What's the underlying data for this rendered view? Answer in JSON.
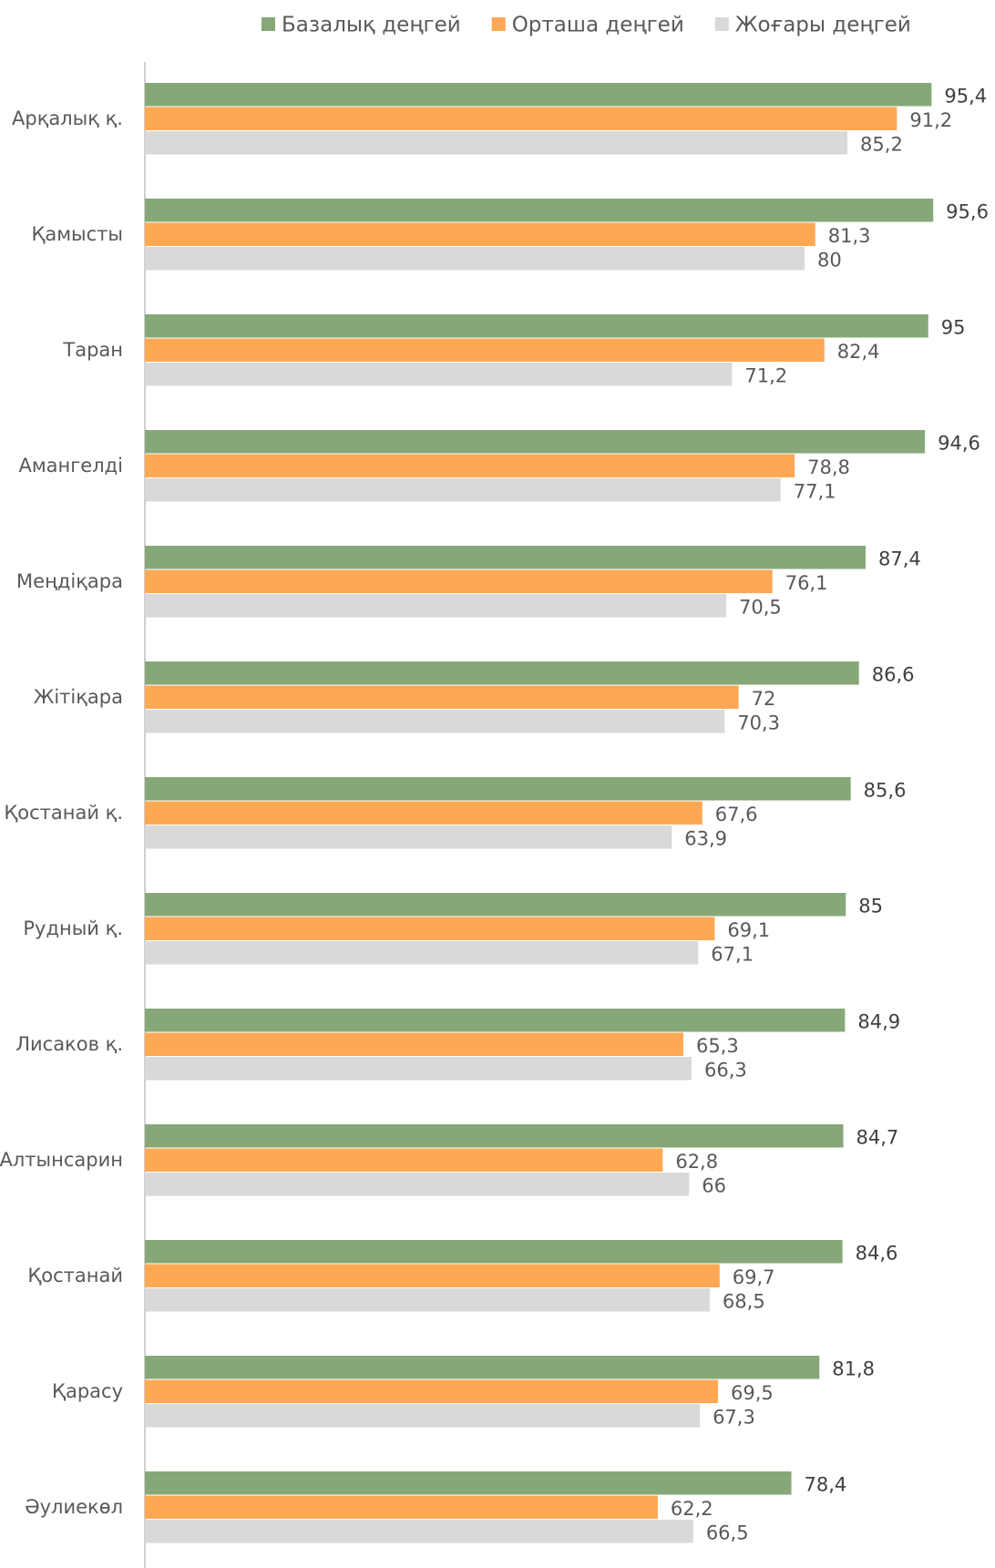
{
  "chart_data": {
    "type": "hbar",
    "categories": [
      "Арқалық қ.",
      "Қамысты",
      "Таран",
      "Амангелді",
      "Меңдіқара",
      "Жітіқара",
      "Қостанай қ.",
      "Рудный қ.",
      "Лисаков қ.",
      "Алтынсарин",
      "Қостанай",
      "Қарасу",
      "Әулиекөл"
    ],
    "series": [
      {
        "name": "Базалық деңгей",
        "color": "#86a878",
        "values": [
          95.4,
          95.6,
          95,
          94.6,
          87.4,
          86.6,
          85.6,
          85,
          84.9,
          84.7,
          84.6,
          81.8,
          78.4
        ],
        "value_labels": [
          "95,4",
          "95,6",
          "95",
          "94,6",
          "87,4",
          "86,6",
          "85,6",
          "85",
          "84,9",
          "84,7",
          "84,6",
          "81,8",
          "78,4"
        ]
      },
      {
        "name": "Орташа деңгей",
        "color": "#ffa854",
        "values": [
          91.2,
          81.3,
          82.4,
          78.8,
          76.1,
          72,
          67.6,
          69.1,
          65.3,
          62.8,
          69.7,
          69.5,
          62.2
        ],
        "value_labels": [
          "91,2",
          "81,3",
          "82,4",
          "78,8",
          "76,1",
          "72",
          "67,6",
          "69,1",
          "65,3",
          "62,8",
          "69,7",
          "69,5",
          "62,2"
        ]
      },
      {
        "name": "Жоғары деңгей",
        "color": "#d9d9d9",
        "values": [
          85.2,
          80,
          71.2,
          77.1,
          70.5,
          70.3,
          63.9,
          67.1,
          66.3,
          66,
          68.5,
          67.3,
          66.5
        ],
        "value_labels": [
          "85,2",
          "80",
          "71,2",
          "77,1",
          "70,5",
          "70,3",
          "63,9",
          "67,1",
          "66,3",
          "66",
          "68,5",
          "67,3",
          "66,5"
        ]
      }
    ],
    "xlim": [
      0,
      100
    ],
    "legend": "top"
  }
}
